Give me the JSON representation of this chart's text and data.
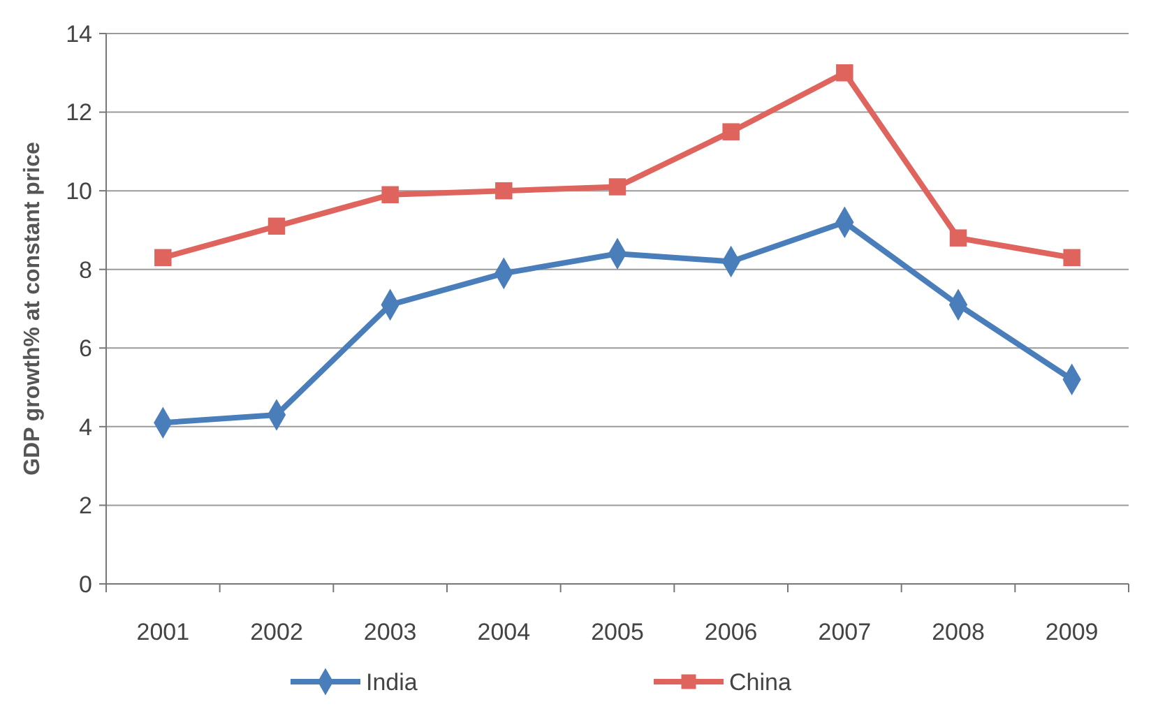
{
  "chart_data": {
    "type": "line",
    "ylabel": "GDP growth% at constant price",
    "categories": [
      "2001",
      "2002",
      "2003",
      "2004",
      "2005",
      "2006",
      "2007",
      "2008",
      "2009"
    ],
    "series": [
      {
        "name": "India",
        "color": "#4a7ebb",
        "marker": "diamond",
        "values": [
          4.1,
          4.3,
          7.1,
          7.9,
          8.4,
          8.2,
          9.2,
          7.1,
          5.2
        ]
      },
      {
        "name": "China",
        "color": "#e0645e",
        "marker": "square",
        "values": [
          8.3,
          9.1,
          9.9,
          10.0,
          10.1,
          11.5,
          13.0,
          8.8,
          8.3
        ]
      }
    ],
    "ylim": [
      0,
      14
    ],
    "yticks": [
      0,
      2,
      4,
      6,
      8,
      10,
      12,
      14
    ],
    "grid": "y",
    "legend": "bottom"
  }
}
